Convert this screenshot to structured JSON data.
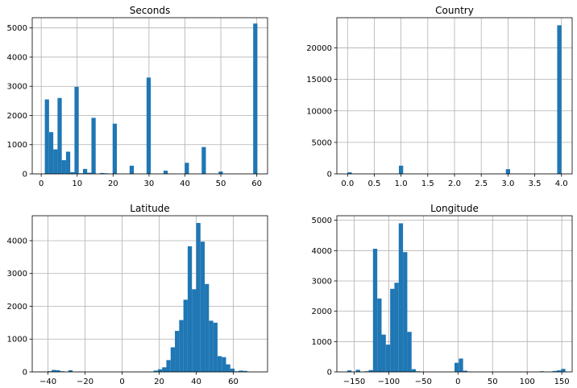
{
  "colors": {
    "bar": "#1f77b4",
    "grid": "#b0b0b0",
    "axis": "#000000"
  },
  "chart_data": [
    {
      "type": "bar",
      "title": "Seconds",
      "xlim": [
        -2.5,
        63.0
      ],
      "ylim": [
        0,
        5350
      ],
      "xticks": [
        0,
        10,
        20,
        30,
        40,
        50,
        60
      ],
      "xtick_labels": [
        "0",
        "10",
        "20",
        "30",
        "40",
        "50",
        "60"
      ],
      "yticks": [
        0,
        1000,
        2000,
        3000,
        4000,
        5000
      ],
      "ytick_labels": [
        "0",
        "1000",
        "2000",
        "3000",
        "4000",
        "5000"
      ],
      "bin_width": 1.18,
      "bins": [
        {
          "x": 1.0,
          "value": 2550
        },
        {
          "x": 2.18,
          "value": 1430
        },
        {
          "x": 3.36,
          "value": 840
        },
        {
          "x": 4.54,
          "value": 2600
        },
        {
          "x": 5.72,
          "value": 470
        },
        {
          "x": 6.9,
          "value": 760
        },
        {
          "x": 8.08,
          "value": 60
        },
        {
          "x": 9.26,
          "value": 2980
        },
        {
          "x": 10.44,
          "value": 20
        },
        {
          "x": 11.62,
          "value": 170
        },
        {
          "x": 12.8,
          "value": 40
        },
        {
          "x": 13.98,
          "value": 1920
        },
        {
          "x": 16.34,
          "value": 30
        },
        {
          "x": 17.52,
          "value": 20
        },
        {
          "x": 19.88,
          "value": 1720
        },
        {
          "x": 24.6,
          "value": 280
        },
        {
          "x": 29.32,
          "value": 3300
        },
        {
          "x": 34.04,
          "value": 110
        },
        {
          "x": 39.94,
          "value": 380
        },
        {
          "x": 44.66,
          "value": 920
        },
        {
          "x": 49.38,
          "value": 80
        },
        {
          "x": 59.0,
          "value": 5150
        }
      ]
    },
    {
      "type": "bar",
      "title": "Country",
      "xlim": [
        -0.2,
        4.2
      ],
      "ylim": [
        0,
        24800
      ],
      "xticks": [
        0,
        0.5,
        1,
        1.5,
        2,
        2.5,
        3,
        3.5,
        4
      ],
      "xtick_labels": [
        "0.0",
        "0.5",
        "1.0",
        "1.5",
        "2.0",
        "2.5",
        "3.0",
        "3.5",
        "4.0"
      ],
      "yticks": [
        0,
        5000,
        10000,
        15000,
        20000
      ],
      "ytick_labels": [
        "0",
        "5000",
        "10000",
        "15000",
        "20000"
      ],
      "bin_width": 0.08,
      "bins": [
        {
          "x": 0.0,
          "value": 250
        },
        {
          "x": 0.96,
          "value": 1300
        },
        {
          "x": 2.96,
          "value": 750
        },
        {
          "x": 3.92,
          "value": 23600
        }
      ]
    },
    {
      "type": "bar",
      "title": "Latitude",
      "xlim": [
        -48.5,
        78.5
      ],
      "ylim": [
        0,
        4760
      ],
      "xticks": [
        -40,
        -20,
        0,
        20,
        40,
        60
      ],
      "xtick_labels": [
        "−40",
        "−20",
        "0",
        "20",
        "40",
        "60"
      ],
      "yticks": [
        0,
        1000,
        2000,
        3000,
        4000
      ],
      "ytick_labels": [
        "0",
        "1000",
        "2000",
        "3000",
        "4000"
      ],
      "bin_width": 2.3,
      "bins": [
        {
          "x": -40.3,
          "value": 20
        },
        {
          "x": -38.0,
          "value": 60
        },
        {
          "x": -35.7,
          "value": 50
        },
        {
          "x": -33.4,
          "value": 20
        },
        {
          "x": -29.0,
          "value": 50
        },
        {
          "x": -24.4,
          "value": 10
        },
        {
          "x": 17.0,
          "value": 40
        },
        {
          "x": 19.3,
          "value": 80
        },
        {
          "x": 21.6,
          "value": 140
        },
        {
          "x": 23.9,
          "value": 360
        },
        {
          "x": 26.2,
          "value": 750
        },
        {
          "x": 28.5,
          "value": 1250
        },
        {
          "x": 30.8,
          "value": 1580
        },
        {
          "x": 33.1,
          "value": 2200
        },
        {
          "x": 35.4,
          "value": 3830
        },
        {
          "x": 37.7,
          "value": 2520
        },
        {
          "x": 40.0,
          "value": 4540
        },
        {
          "x": 42.3,
          "value": 3970
        },
        {
          "x": 44.6,
          "value": 2680
        },
        {
          "x": 46.9,
          "value": 1560
        },
        {
          "x": 49.2,
          "value": 1500
        },
        {
          "x": 51.5,
          "value": 480
        },
        {
          "x": 53.8,
          "value": 450
        },
        {
          "x": 56.1,
          "value": 230
        },
        {
          "x": 58.4,
          "value": 100
        },
        {
          "x": 60.7,
          "value": 20
        },
        {
          "x": 63.0,
          "value": 40
        },
        {
          "x": 65.3,
          "value": 30
        }
      ]
    },
    {
      "type": "bar",
      "title": "Longitude",
      "xlim": [
        -175.0,
        165.0
      ],
      "ylim": [
        0,
        5150
      ],
      "xticks": [
        -150,
        -100,
        -50,
        0,
        50,
        100,
        150
      ],
      "xtick_labels": [
        "−150",
        "−100",
        "−50",
        "0",
        "50",
        "100",
        "150"
      ],
      "yticks": [
        0,
        1000,
        2000,
        3000,
        4000,
        5000
      ],
      "ytick_labels": [
        "0",
        "1000",
        "2000",
        "3000",
        "4000",
        "5000"
      ],
      "bin_width": 6.2,
      "bins": [
        {
          "x": -160.0,
          "value": 50
        },
        {
          "x": -147.6,
          "value": 70
        },
        {
          "x": -135.2,
          "value": 20
        },
        {
          "x": -129.0,
          "value": 60
        },
        {
          "x": -122.8,
          "value": 4060
        },
        {
          "x": -116.6,
          "value": 2420
        },
        {
          "x": -110.4,
          "value": 1230
        },
        {
          "x": -104.2,
          "value": 900
        },
        {
          "x": -98.0,
          "value": 2740
        },
        {
          "x": -91.8,
          "value": 2940
        },
        {
          "x": -85.6,
          "value": 4900
        },
        {
          "x": -79.4,
          "value": 3950
        },
        {
          "x": -73.2,
          "value": 1320
        },
        {
          "x": -67.0,
          "value": 90
        },
        {
          "x": -60.8,
          "value": 20
        },
        {
          "x": -5.0,
          "value": 300
        },
        {
          "x": 1.2,
          "value": 440
        },
        {
          "x": 7.4,
          "value": 40
        },
        {
          "x": 13.6,
          "value": 10
        },
        {
          "x": 118.0,
          "value": 20
        },
        {
          "x": 136.6,
          "value": 30
        },
        {
          "x": 142.8,
          "value": 50
        },
        {
          "x": 149.0,
          "value": 100
        }
      ]
    }
  ]
}
